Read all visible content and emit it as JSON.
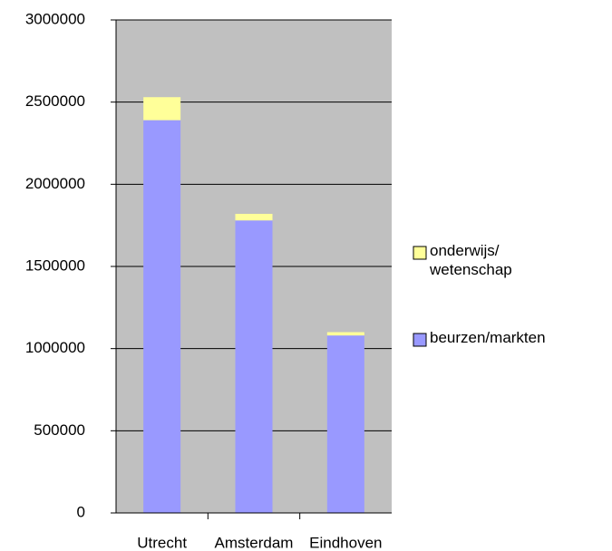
{
  "chart_data": {
    "type": "stacked_bar",
    "categories": [
      "Utrecht",
      "Amsterdam",
      "Eindhoven"
    ],
    "series": [
      {
        "name": "beurzen/markten",
        "color": "#9999ff",
        "values": [
          2390000,
          1780000,
          1080000
        ]
      },
      {
        "name": "onderwijs/ wetenschap",
        "color": "#ffff99",
        "values": [
          140000,
          40000,
          20000
        ]
      }
    ],
    "ylim": [
      0,
      3000000
    ],
    "yticks": [
      0,
      500000,
      1000000,
      1500000,
      2000000,
      2500000,
      3000000
    ],
    "grid": true,
    "legend": "right"
  }
}
